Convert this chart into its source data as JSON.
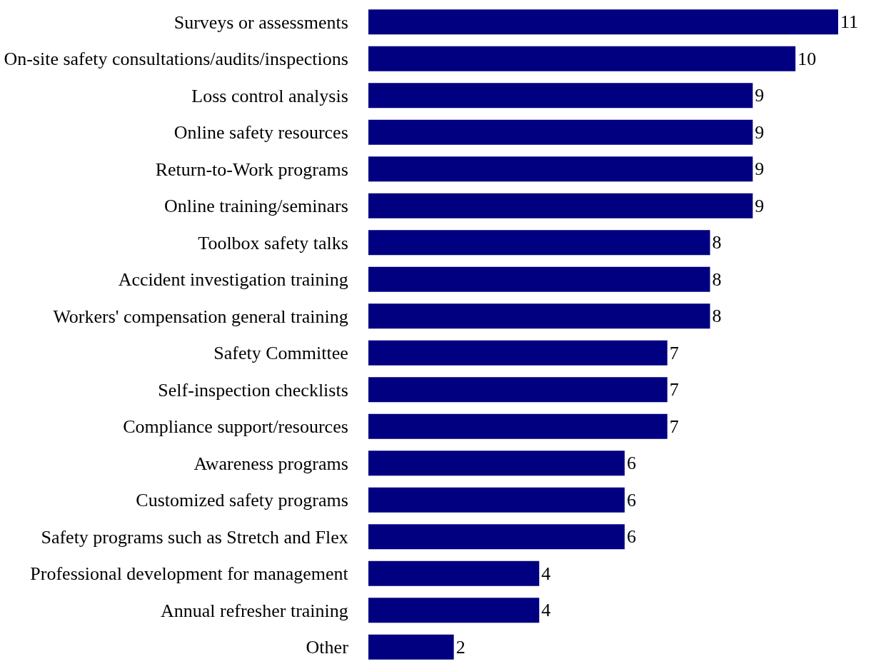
{
  "chart_data": {
    "type": "bar",
    "orientation": "horizontal",
    "data_labels": true,
    "categories": [
      "Surveys or assessments",
      "On-site safety consultations/audits/inspections",
      "Loss control analysis",
      "Online safety resources",
      "Return-to-Work programs",
      "Online training/seminars",
      "Toolbox safety talks",
      "Accident investigation training",
      "Workers' compensation general training",
      "Safety Committee",
      "Self-inspection checklists",
      "Compliance support/resources",
      "Awareness programs",
      "Customized safety programs",
      "Safety programs such as Stretch and Flex",
      "Professional development for management",
      "Annual refresher training",
      "Other"
    ],
    "values": [
      11,
      10,
      9,
      9,
      9,
      9,
      8,
      8,
      8,
      7,
      7,
      7,
      6,
      6,
      6,
      4,
      4,
      2
    ],
    "color": "#000080"
  }
}
